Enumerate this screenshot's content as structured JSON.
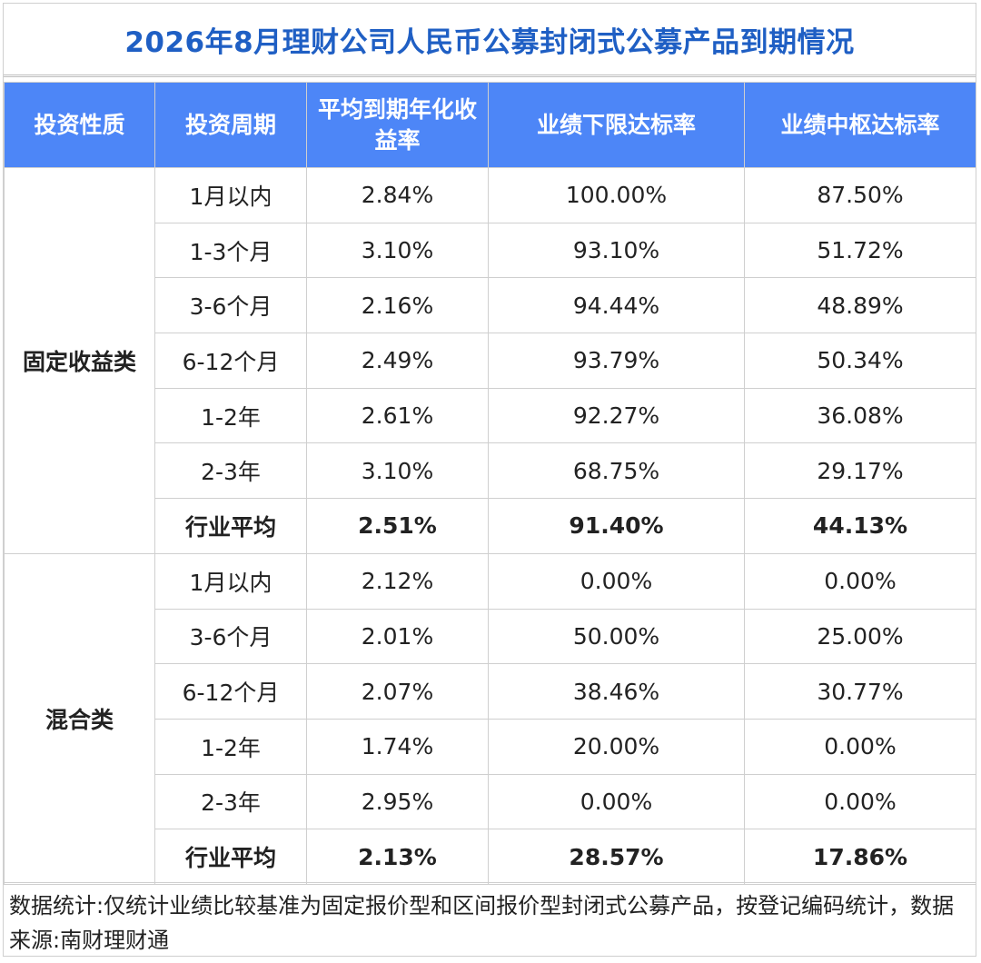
{
  "title": "2026年8月理财公司人民币公募封闭式公募产品到期情况",
  "headers": [
    "投资性质",
    "投资周期",
    "平均到期年化收益率",
    "业绩下限达标率",
    "业绩中枢达标率"
  ],
  "groups": [
    {
      "category": "固定收益类",
      "rows": [
        [
          "1月以内",
          "2.84%",
          "100.00%",
          "87.50%"
        ],
        [
          "1-3个月",
          "3.10%",
          "93.10%",
          "51.72%"
        ],
        [
          "3-6个月",
          "2.16%",
          "94.44%",
          "48.89%"
        ],
        [
          "6-12个月",
          "2.49%",
          "93.79%",
          "50.34%"
        ],
        [
          "1-2年",
          "2.61%",
          "92.27%",
          "36.08%"
        ],
        [
          "2-3年",
          "3.10%",
          "68.75%",
          "29.17%"
        ]
      ],
      "average": [
        "行业平均",
        "2.51%",
        "91.40%",
        "44.13%"
      ]
    },
    {
      "category": "混合类",
      "rows": [
        [
          "1月以内",
          "2.12%",
          "0.00%",
          "0.00%"
        ],
        [
          "3-6个月",
          "2.01%",
          "50.00%",
          "25.00%"
        ],
        [
          "6-12个月",
          "2.07%",
          "38.46%",
          "30.77%"
        ],
        [
          "1-2年",
          "1.74%",
          "20.00%",
          "0.00%"
        ],
        [
          "2-3年",
          "2.95%",
          "0.00%",
          "0.00%"
        ]
      ],
      "average": [
        "行业平均",
        "2.13%",
        "28.57%",
        "17.86%"
      ]
    }
  ],
  "note": "数据统计:仅统计业绩比较基准为固定报价型和区间报价型封闭式公募产品，按登记编码统计，数据来源:南财理财通",
  "colors": {
    "title": "#1f5fc4",
    "header_bg": "#4d86f7",
    "border": "#cfcfcf"
  }
}
